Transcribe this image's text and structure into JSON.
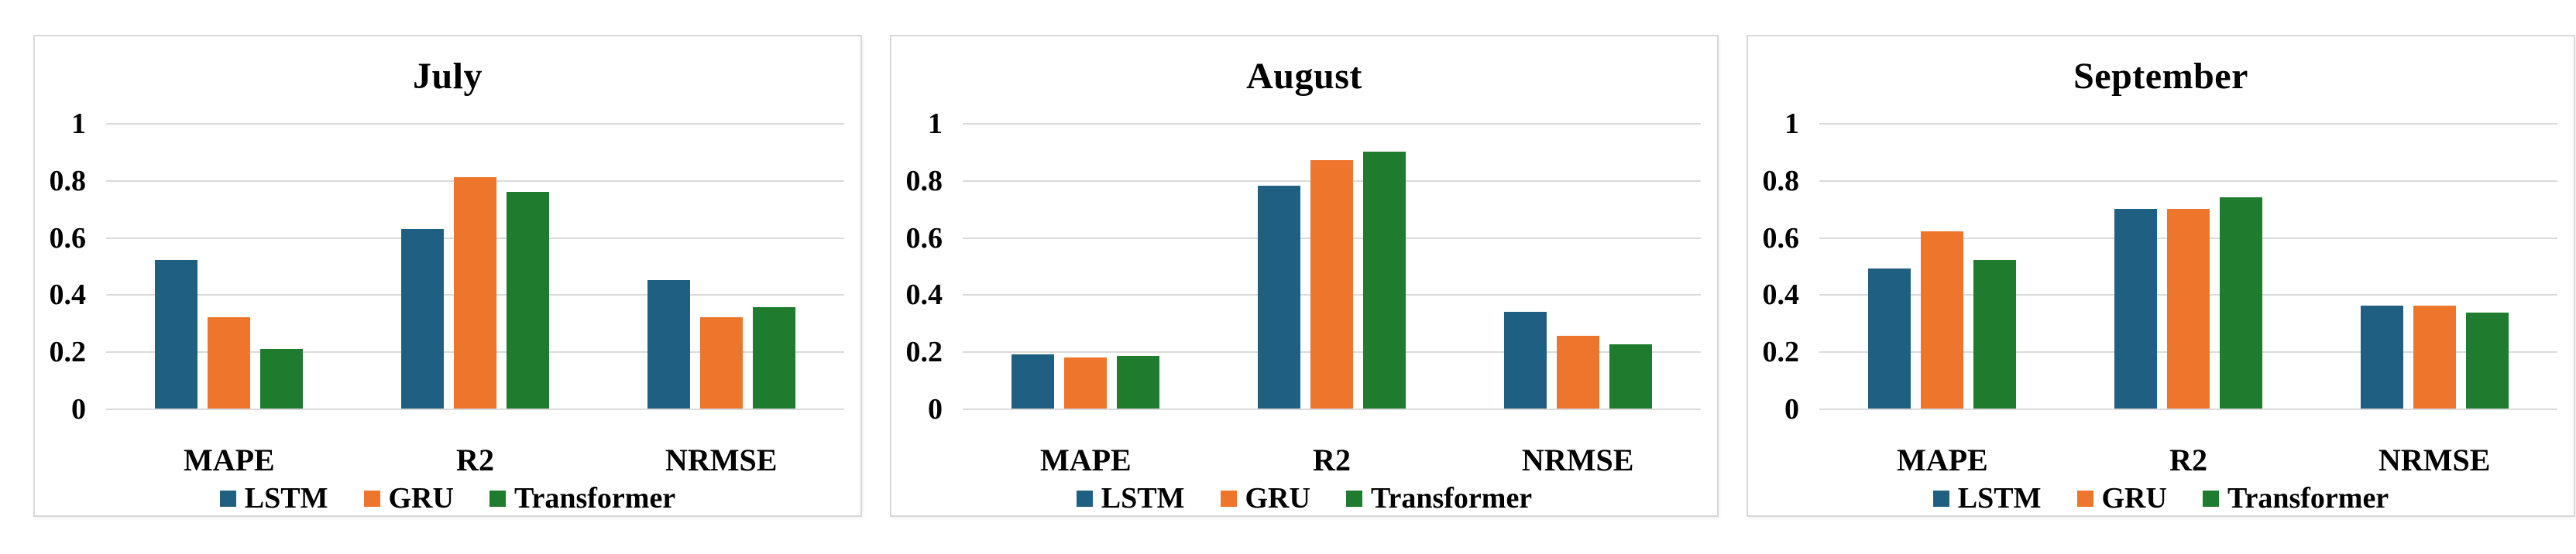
{
  "figure": {
    "background": "#ffffff",
    "text_color": "#000000",
    "panel_border_color": "#d8d8d8",
    "gridline_color": "#dadada"
  },
  "chart_data": [
    {
      "type": "bar",
      "title": "July",
      "categories": [
        "MAPE",
        "R2",
        "NRMSE"
      ],
      "series": [
        {
          "name": "LSTM",
          "color": "#1f6082",
          "values": [
            0.52,
            0.63,
            0.45
          ]
        },
        {
          "name": "GRU",
          "color": "#ed752c",
          "values": [
            0.32,
            0.81,
            0.32
          ]
        },
        {
          "name": "Transformer",
          "color": "#1f7b2e",
          "values": [
            0.21,
            0.76,
            0.355
          ]
        }
      ],
      "ylim": [
        0,
        1
      ],
      "ytick_labels": [
        "1",
        "0.8",
        "0.6",
        "0.4",
        "0.2",
        "0"
      ],
      "grid": true,
      "legend_position": "bottom"
    },
    {
      "type": "bar",
      "title": "August",
      "categories": [
        "MAPE",
        "R2",
        "NRMSE"
      ],
      "series": [
        {
          "name": "LSTM",
          "color": "#1f6082",
          "values": [
            0.19,
            0.78,
            0.34
          ]
        },
        {
          "name": "GRU",
          "color": "#ed752c",
          "values": [
            0.18,
            0.87,
            0.255
          ]
        },
        {
          "name": "Transformer",
          "color": "#1f7b2e",
          "values": [
            0.185,
            0.9,
            0.225
          ]
        }
      ],
      "ylim": [
        0,
        1
      ],
      "ytick_labels": [
        "1",
        "0.8",
        "0.6",
        "0.4",
        "0.2",
        "0"
      ],
      "grid": true,
      "legend_position": "bottom"
    },
    {
      "type": "bar",
      "title": "September",
      "categories": [
        "MAPE",
        "R2",
        "NRMSE"
      ],
      "series": [
        {
          "name": "LSTM",
          "color": "#1f6082",
          "values": [
            0.49,
            0.7,
            0.36
          ]
        },
        {
          "name": "GRU",
          "color": "#ed752c",
          "values": [
            0.62,
            0.7,
            0.36
          ]
        },
        {
          "name": "Transformer",
          "color": "#1f7b2e",
          "values": [
            0.52,
            0.74,
            0.335
          ]
        }
      ],
      "ylim": [
        0,
        1
      ],
      "ytick_labels": [
        "1",
        "0.8",
        "0.6",
        "0.4",
        "0.2",
        "0"
      ],
      "grid": true,
      "legend_position": "bottom"
    }
  ]
}
